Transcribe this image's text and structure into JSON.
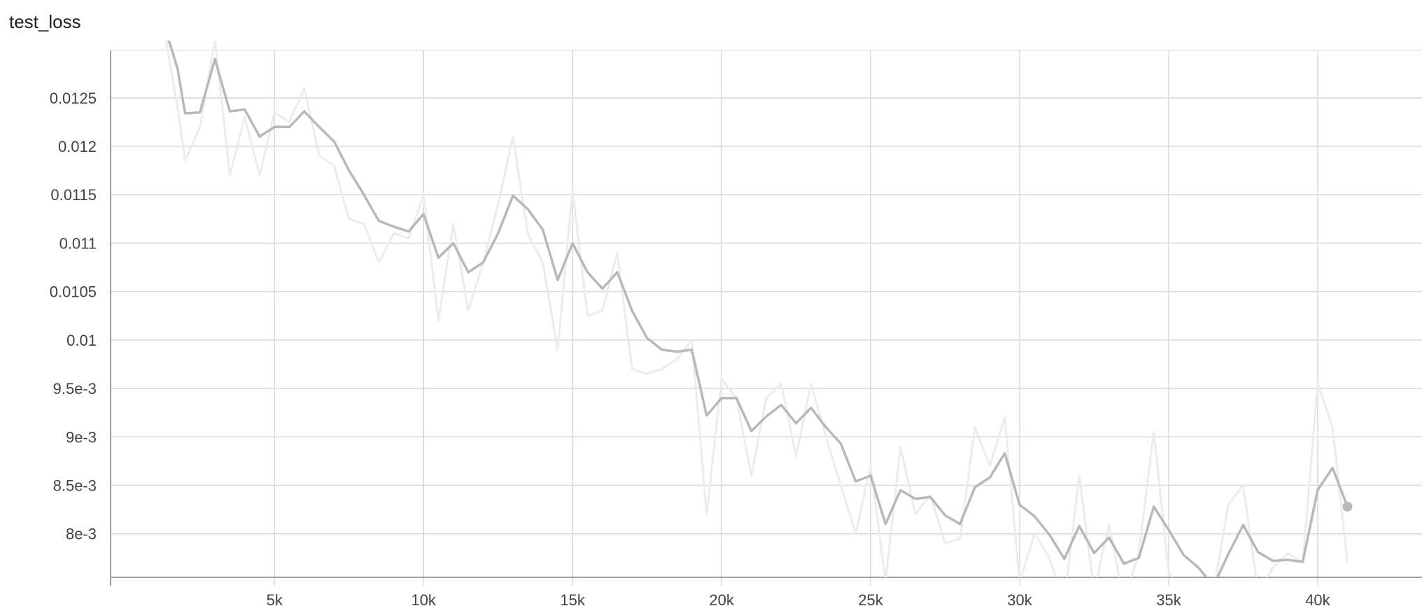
{
  "chart_data": {
    "type": "line",
    "title": "test_loss",
    "xlabel": "",
    "ylabel": "",
    "xlim": [
      -500,
      43500
    ],
    "ylim": [
      0.00755,
      0.01299
    ],
    "x_ticks": [
      {
        "value": 5000,
        "label": "5k"
      },
      {
        "value": 10000,
        "label": "10k"
      },
      {
        "value": 15000,
        "label": "15k"
      },
      {
        "value": 20000,
        "label": "20k"
      },
      {
        "value": 25000,
        "label": "25k"
      },
      {
        "value": 30000,
        "label": "30k"
      },
      {
        "value": 35000,
        "label": "35k"
      },
      {
        "value": 40000,
        "label": "40k"
      }
    ],
    "y_ticks": [
      {
        "value": 0.008,
        "label": "8e-3"
      },
      {
        "value": 0.0085,
        "label": "8.5e-3"
      },
      {
        "value": 0.009,
        "label": "9e-3"
      },
      {
        "value": 0.0095,
        "label": "9.5e-3"
      },
      {
        "value": 0.01,
        "label": "0.01"
      },
      {
        "value": 0.0105,
        "label": "0.0105"
      },
      {
        "value": 0.011,
        "label": "0.011"
      },
      {
        "value": 0.0115,
        "label": "0.0115"
      },
      {
        "value": 0.012,
        "label": "0.012"
      },
      {
        "value": 0.0125,
        "label": "0.0125"
      }
    ],
    "grid": true,
    "colors": {
      "smoothed": "#b8b8b8",
      "raw": "#ececec",
      "grid": "#d9d9d9",
      "axis": "#9e9e9e"
    },
    "series": [
      {
        "role": "raw",
        "x": [
          1250,
          1750,
          2000,
          2500,
          3000,
          3500,
          4000,
          4500,
          5000,
          5500,
          6000,
          6500,
          7000,
          7500,
          8000,
          8500,
          9000,
          9500,
          10000,
          10500,
          11000,
          11500,
          12000,
          12500,
          13000,
          13500,
          14000,
          14500,
          15000,
          15500,
          16000,
          16500,
          17000,
          17500,
          18000,
          18500,
          19000,
          19500,
          20000,
          20500,
          21000,
          21500,
          22000,
          22500,
          23000,
          23500,
          24000,
          24500,
          25000,
          25500,
          26000,
          26500,
          27000,
          27500,
          28000,
          28500,
          29000,
          29500,
          30000,
          30500,
          31000,
          31500,
          32000,
          32500,
          33000,
          33500,
          34000,
          34500,
          35000,
          35500,
          36000,
          36500,
          37000,
          37500,
          38000,
          38500,
          39000,
          39500,
          40000,
          40500,
          41000
        ],
        "y": [
          0.0133,
          0.0124,
          0.01185,
          0.0122,
          0.0131,
          0.0117,
          0.0123,
          0.0117,
          0.01235,
          0.01225,
          0.0126,
          0.0119,
          0.0118,
          0.01125,
          0.0112,
          0.0108,
          0.0111,
          0.01105,
          0.0115,
          0.0102,
          0.0112,
          0.0103,
          0.0108,
          0.0114,
          0.0121,
          0.0111,
          0.0108,
          0.0099,
          0.01155,
          0.01025,
          0.0103,
          0.0109,
          0.0097,
          0.00965,
          0.0097,
          0.0098,
          0.01,
          0.0082,
          0.0096,
          0.0094,
          0.0086,
          0.0094,
          0.00955,
          0.0088,
          0.00955,
          0.009,
          0.0085,
          0.008,
          0.0087,
          0.0075,
          0.0089,
          0.0082,
          0.0084,
          0.0079,
          0.00795,
          0.0091,
          0.0087,
          0.0092,
          0.0075,
          0.008,
          0.00775,
          0.0073,
          0.0086,
          0.0074,
          0.0081,
          0.0073,
          0.0078,
          0.00905,
          0.0076,
          0.0074,
          0.0075,
          0.0074,
          0.0083,
          0.0085,
          0.0074,
          0.00765,
          0.0078,
          0.0077,
          0.00955,
          0.0091,
          0.0077
        ]
      },
      {
        "role": "smoothed",
        "x": [
          1250,
          1750,
          2000,
          2500,
          3000,
          3500,
          4000,
          4500,
          5000,
          5500,
          6000,
          6500,
          7000,
          7500,
          8000,
          8500,
          9000,
          9500,
          10000,
          10500,
          11000,
          11500,
          12000,
          12500,
          13000,
          13500,
          14000,
          14500,
          15000,
          15500,
          16000,
          16500,
          17000,
          17500,
          18000,
          18500,
          19000,
          19500,
          20000,
          20500,
          21000,
          21500,
          22000,
          22500,
          23000,
          23500,
          24000,
          24500,
          25000,
          25500,
          26000,
          26500,
          27000,
          27500,
          28000,
          28500,
          29000,
          29500,
          30000,
          30500,
          31000,
          31500,
          32000,
          32500,
          33000,
          33500,
          34000,
          34500,
          35000,
          35500,
          36000,
          36500,
          37000,
          37500,
          38000,
          38500,
          39000,
          39500,
          40000,
          40500,
          41000
        ],
        "y": [
          0.0133,
          0.0128,
          0.01234,
          0.01235,
          0.0129,
          0.01236,
          0.01238,
          0.0121,
          0.0122,
          0.0122,
          0.01236,
          0.0122,
          0.01205,
          0.01175,
          0.0115,
          0.01123,
          0.01117,
          0.01112,
          0.0113,
          0.01085,
          0.011,
          0.0107,
          0.0108,
          0.0111,
          0.01149,
          0.01135,
          0.01114,
          0.01062,
          0.011,
          0.0107,
          0.01053,
          0.0107,
          0.0103,
          0.01002,
          0.0099,
          0.00988,
          0.0099,
          0.00922,
          0.0094,
          0.0094,
          0.00906,
          0.00921,
          0.00933,
          0.00914,
          0.0093,
          0.0091,
          0.00893,
          0.00854,
          0.0086,
          0.0081,
          0.00845,
          0.00836,
          0.00838,
          0.00819,
          0.0081,
          0.00848,
          0.00858,
          0.00883,
          0.0083,
          0.00818,
          0.00799,
          0.00774,
          0.00808,
          0.0078,
          0.00796,
          0.00769,
          0.00775,
          0.00828,
          0.00804,
          0.00778,
          0.00765,
          0.00746,
          0.00779,
          0.00809,
          0.00781,
          0.00772,
          0.00773,
          0.00771,
          0.00845,
          0.00868,
          0.00828
        ]
      }
    ]
  }
}
